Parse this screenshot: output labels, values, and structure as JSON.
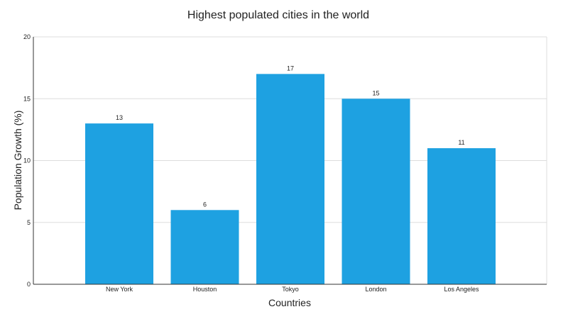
{
  "chart_data": {
    "type": "bar",
    "title": "Highest populated cities in the world",
    "xlabel": "Countries",
    "ylabel": "Population Growth (%)",
    "categories": [
      "New York",
      "Houston",
      "Tokyo",
      "London",
      "Los Angeles"
    ],
    "values": [
      13,
      6,
      17,
      15,
      11
    ],
    "ylim": [
      0,
      20
    ],
    "yticks": [
      0,
      5,
      10,
      15,
      20
    ],
    "grid": true,
    "legend": "none",
    "data_labels": true,
    "colors": {
      "bar": "#1ea1e1",
      "grid": "#dddddd",
      "axis": "#333333",
      "plot_border": "#dddddd"
    }
  }
}
